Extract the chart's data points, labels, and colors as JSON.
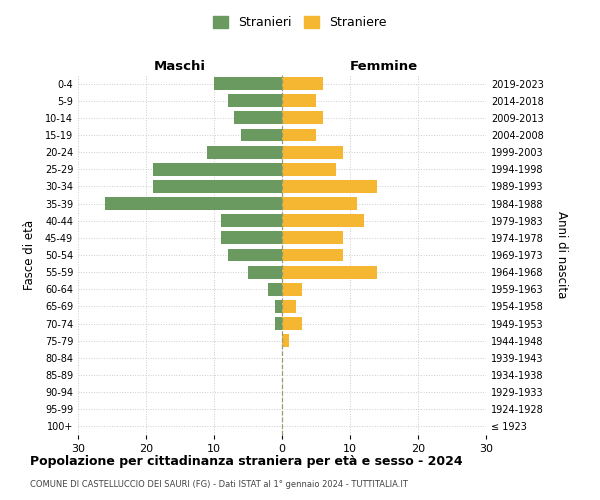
{
  "age_groups": [
    "100+",
    "95-99",
    "90-94",
    "85-89",
    "80-84",
    "75-79",
    "70-74",
    "65-69",
    "60-64",
    "55-59",
    "50-54",
    "45-49",
    "40-44",
    "35-39",
    "30-34",
    "25-29",
    "20-24",
    "15-19",
    "10-14",
    "5-9",
    "0-4"
  ],
  "birth_years": [
    "≤ 1923",
    "1924-1928",
    "1929-1933",
    "1934-1938",
    "1939-1943",
    "1944-1948",
    "1949-1953",
    "1954-1958",
    "1959-1963",
    "1964-1968",
    "1969-1973",
    "1974-1978",
    "1979-1983",
    "1984-1988",
    "1989-1993",
    "1994-1998",
    "1999-2003",
    "2004-2008",
    "2009-2013",
    "2014-2018",
    "2019-2023"
  ],
  "maschi": [
    0,
    0,
    0,
    0,
    0,
    0,
    1,
    1,
    2,
    5,
    8,
    9,
    9,
    26,
    19,
    19,
    11,
    6,
    7,
    8,
    10
  ],
  "femmine": [
    0,
    0,
    0,
    0,
    0,
    1,
    3,
    2,
    3,
    14,
    9,
    9,
    12,
    11,
    14,
    8,
    9,
    5,
    6,
    5,
    6
  ],
  "maschi_color": "#6a9a5f",
  "femmine_color": "#f5b731",
  "grid_color": "#cccccc",
  "title": "Popolazione per cittadinanza straniera per età e sesso - 2024",
  "subtitle": "COMUNE DI CASTELLUCCIO DEI SAURI (FG) - Dati ISTAT al 1° gennaio 2024 - TUTTITALIA.IT",
  "xlabel_left": "Maschi",
  "xlabel_right": "Femmine",
  "ylabel_left": "Fasce di età",
  "ylabel_right": "Anni di nascita",
  "legend_maschi": "Stranieri",
  "legend_femmine": "Straniere",
  "xlim": 30
}
